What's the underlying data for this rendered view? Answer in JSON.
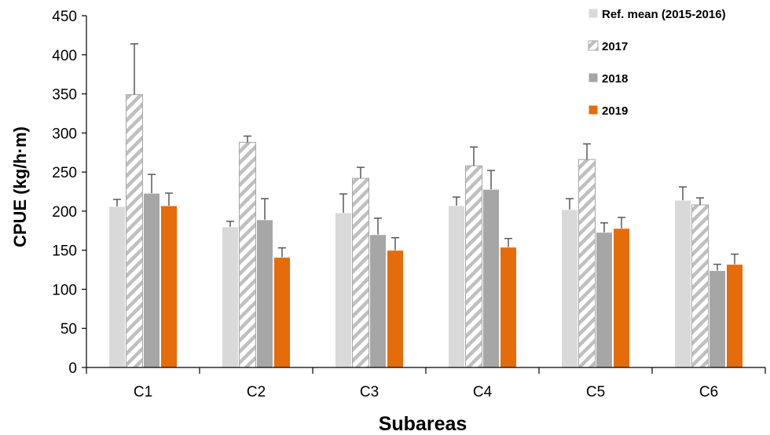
{
  "chart_data": {
    "type": "bar",
    "xlabel": "Subareas",
    "ylabel": "CPUE (kg/h·m)",
    "ylim": [
      0,
      450
    ],
    "yticks": [
      0,
      50,
      100,
      150,
      200,
      250,
      300,
      350,
      400,
      450
    ],
    "categories": [
      "C1",
      "C2",
      "C3",
      "C4",
      "C5",
      "C6"
    ],
    "grid": false,
    "legend_position": "top-right",
    "series": [
      {
        "name": "Ref. mean (2015-2016)",
        "color": "#d9d9d9",
        "pattern": "solid",
        "values": [
          206,
          180,
          198,
          207,
          202,
          214
        ],
        "error": [
          9,
          7,
          24,
          11,
          14,
          17
        ]
      },
      {
        "name": "2017",
        "color": "#bfbfbf",
        "pattern": "diagonal-hatch",
        "values": [
          349,
          288,
          242,
          258,
          266,
          208
        ],
        "error": [
          65,
          8,
          14,
          24,
          20,
          9
        ]
      },
      {
        "name": "2018",
        "color": "#a6a6a6",
        "pattern": "solid",
        "values": [
          223,
          189,
          170,
          228,
          173,
          124
        ],
        "error": [
          24,
          27,
          21,
          24,
          12,
          8
        ]
      },
      {
        "name": "2019",
        "color": "#e46c0a",
        "pattern": "solid",
        "values": [
          207,
          141,
          150,
          154,
          178,
          132
        ],
        "error": [
          16,
          12,
          16,
          11,
          14,
          13
        ]
      }
    ]
  }
}
